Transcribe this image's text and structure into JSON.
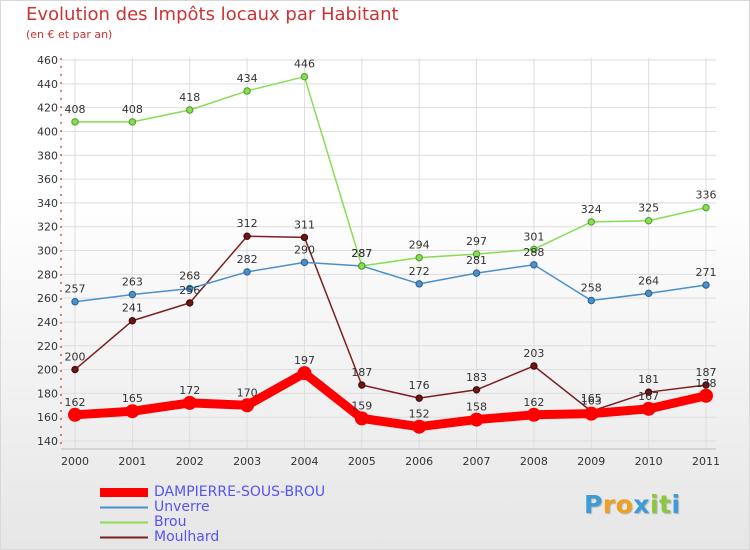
{
  "header": {
    "title": "Evolution des Impôts locaux par Habitant",
    "subtitle": "(en € et par an)"
  },
  "logo": {
    "letters": [
      "P",
      "r",
      "o",
      "x",
      "i",
      "t",
      "i"
    ],
    "colors": [
      "#3d9bd6",
      "#f0a020",
      "#f0a020",
      "#3d9bd6",
      "#8cc63f",
      "#8cc63f",
      "#3d9bd6"
    ]
  },
  "chart_data": {
    "type": "line",
    "title": "Evolution des Impôts locaux par Habitant",
    "subtitle": "(en € et par an)",
    "xlabel": "",
    "ylabel": "",
    "categories": [
      "2000",
      "2001",
      "2002",
      "2003",
      "2004",
      "2005",
      "2006",
      "2007",
      "2008",
      "2009",
      "2010",
      "2011"
    ],
    "ylim": [
      140,
      460
    ],
    "yticks": [
      140,
      160,
      180,
      200,
      220,
      240,
      260,
      280,
      300,
      320,
      340,
      360,
      380,
      400,
      420,
      440,
      460
    ],
    "grid": true,
    "legend_position": "bottom-left",
    "series": [
      {
        "name": "Moulhard",
        "color": "#7a2020",
        "values": [
          200,
          241,
          256,
          312,
          311,
          187,
          176,
          183,
          203,
          165,
          181,
          187
        ]
      },
      {
        "name": "Unverre",
        "color": "#4a90cc",
        "values": [
          257,
          263,
          268,
          282,
          290,
          287,
          272,
          281,
          288,
          258,
          264,
          271
        ]
      },
      {
        "name": "Brou",
        "color": "#88dd55",
        "values": [
          408,
          408,
          418,
          434,
          446,
          287,
          294,
          297,
          301,
          324,
          325,
          336
        ]
      },
      {
        "name": "DAMPIERRE-SOUS-BROU",
        "color": "#ff0000",
        "values": [
          162,
          165,
          172,
          170,
          197,
          159,
          152,
          158,
          162,
          163,
          167,
          178
        ]
      }
    ],
    "point_labels": {
      "Moulhard": [
        "200",
        "241",
        "256",
        "312",
        "311",
        "187",
        "176",
        "183",
        "203",
        "165",
        "181",
        "187"
      ],
      "Unverre": [
        "257",
        "263",
        "268",
        "282",
        "290",
        "287",
        "272",
        "281",
        "288",
        "258",
        "264",
        "271"
      ],
      "Brou": [
        "408",
        "408",
        "418",
        "434",
        "446",
        "287",
        "294",
        "297",
        "301",
        "324",
        "325",
        "336"
      ],
      "DAMPIERRE-SOUS-BROU": [
        "162",
        "165",
        "172",
        "170",
        "197",
        "159",
        "152",
        "158",
        "162",
        "163",
        "167",
        "178"
      ]
    },
    "legend": [
      "DAMPIERRE-SOUS-BROU",
      "Unverre",
      "Brou",
      "Moulhard"
    ]
  }
}
